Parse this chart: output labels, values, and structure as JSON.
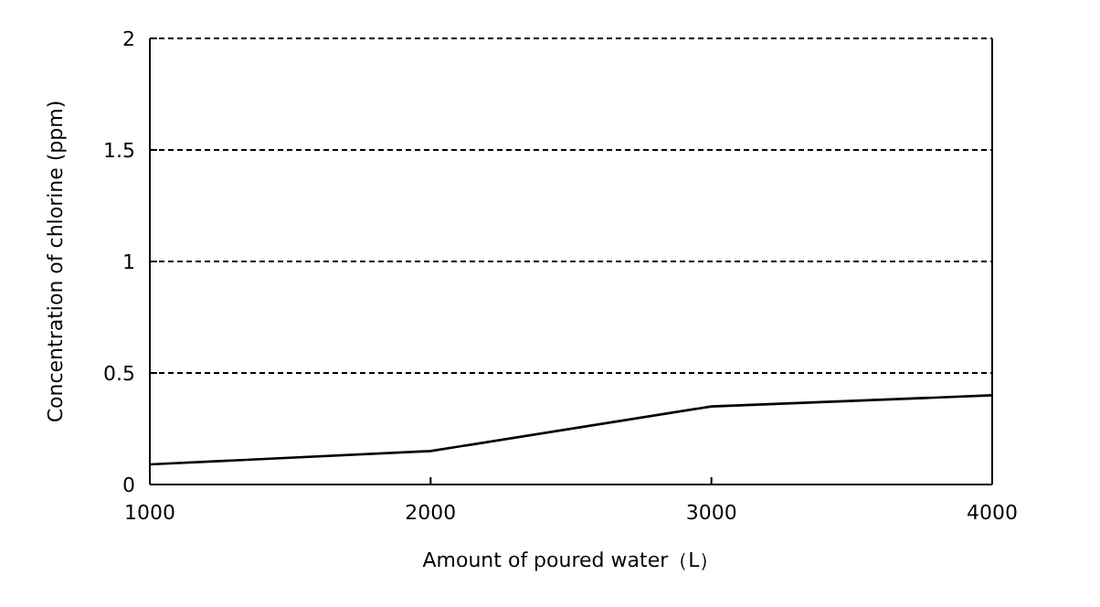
{
  "chart_data": {
    "type": "line",
    "xlabel": "Amount of poured water（L）",
    "ylabel": "Concentration of chlorine (ppm)",
    "x": [
      1000,
      2000,
      3000,
      4000
    ],
    "series": [
      {
        "color": "#000000",
        "values": [
          0.09,
          0.15,
          0.35,
          0.4
        ]
      }
    ],
    "xlim": [
      1000,
      4000
    ],
    "xticks": [
      1000,
      2000,
      3000,
      4000
    ],
    "ylim": [
      0,
      2
    ],
    "yticks": [
      0,
      0.5,
      1,
      1.5,
      2
    ],
    "grid": "y",
    "marker": "none",
    "line_style": "solid"
  }
}
